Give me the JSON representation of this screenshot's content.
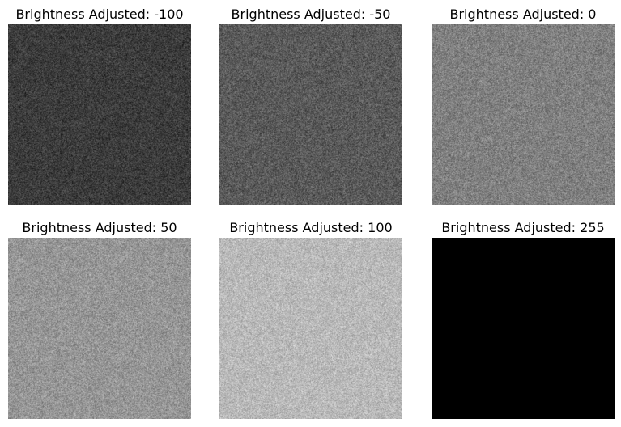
{
  "panels": [
    {
      "title": "Brightness Adjusted: -100",
      "mean_gray": 60,
      "spread": 50,
      "seed": 11
    },
    {
      "title": "Brightness Adjusted: -50",
      "mean_gray": 90,
      "spread": 55,
      "seed": 23
    },
    {
      "title": "Brightness Adjusted: 0",
      "mean_gray": 128,
      "spread": 55,
      "seed": 37
    },
    {
      "title": "Brightness Adjusted: 50",
      "mean_gray": 150,
      "spread": 55,
      "seed": 41
    },
    {
      "title": "Brightness Adjusted: 100",
      "mean_gray": 185,
      "spread": 50,
      "seed": 53
    },
    {
      "title": "Brightness Adjusted: 255",
      "mean_gray": 0,
      "spread": 0,
      "seed": 67
    }
  ]
}
